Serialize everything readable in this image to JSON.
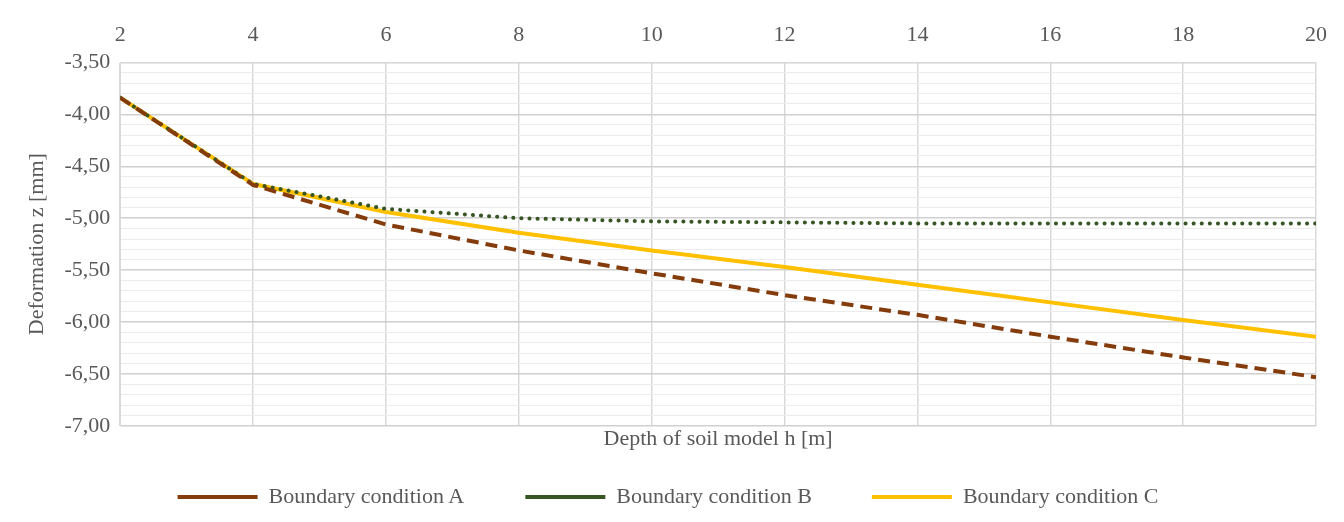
{
  "chart_data": {
    "type": "line",
    "xlabel": "Depth of soil model h [m]",
    "ylabel": "Deformation z [mm]",
    "x": [
      2,
      4,
      6,
      8,
      10,
      12,
      14,
      16,
      18,
      20
    ],
    "series": [
      {
        "name": "Boundary condition A",
        "color": "#843c0c",
        "line_style": "dashed",
        "values": [
          -3.84,
          -4.68,
          -5.06,
          -5.31,
          -5.53,
          -5.74,
          -5.93,
          -6.14,
          -6.34,
          -6.53
        ]
      },
      {
        "name": "Boundary condition B",
        "color": "#375623",
        "line_style": "dotted",
        "values": [
          -3.84,
          -4.67,
          -4.91,
          -5.0,
          -5.03,
          -5.04,
          -5.05,
          -5.05,
          -5.05,
          -5.05
        ]
      },
      {
        "name": "Boundary condition C",
        "color": "#ffc000",
        "line_style": "solid",
        "values": [
          -3.84,
          -4.67,
          -4.94,
          -5.14,
          -5.31,
          -5.47,
          -5.64,
          -5.81,
          -5.98,
          -6.14
        ]
      }
    ],
    "xlim": [
      2,
      20
    ],
    "xticks": [
      2,
      4,
      6,
      8,
      10,
      12,
      14,
      16,
      18,
      20
    ],
    "ylim": [
      -7,
      -3.5
    ],
    "yticks": [
      {
        "value": -3.5,
        "label": "-3,50"
      },
      {
        "value": -3.6,
        "label": null
      },
      {
        "value": -3.7,
        "label": null
      },
      {
        "value": -3.8,
        "label": null
      },
      {
        "value": -3.9,
        "label": null
      },
      {
        "value": -4.0,
        "label": "-4,00"
      },
      {
        "value": -4.1,
        "label": null
      },
      {
        "value": -4.2,
        "label": null
      },
      {
        "value": -4.3,
        "label": null
      },
      {
        "value": -4.4,
        "label": null
      },
      {
        "value": -4.5,
        "label": "-4,50"
      },
      {
        "value": -4.6,
        "label": null
      },
      {
        "value": -4.7,
        "label": null
      },
      {
        "value": -4.8,
        "label": null
      },
      {
        "value": -4.9,
        "label": null
      },
      {
        "value": -5.0,
        "label": "-5,00"
      },
      {
        "value": -5.1,
        "label": null
      },
      {
        "value": -5.2,
        "label": null
      },
      {
        "value": -5.3,
        "label": null
      },
      {
        "value": -5.4,
        "label": null
      },
      {
        "value": -5.5,
        "label": "-5,50"
      },
      {
        "value": -5.6,
        "label": null
      },
      {
        "value": -5.7,
        "label": null
      },
      {
        "value": -5.8,
        "label": null
      },
      {
        "value": -5.9,
        "label": null
      },
      {
        "value": -6.0,
        "label": "-6,00"
      },
      {
        "value": -6.1,
        "label": null
      },
      {
        "value": -6.2,
        "label": null
      },
      {
        "value": -6.3,
        "label": null
      },
      {
        "value": -6.4,
        "label": null
      },
      {
        "value": -6.5,
        "label": "-6,50"
      },
      {
        "value": -6.6,
        "label": null
      },
      {
        "value": -6.7,
        "label": null
      },
      {
        "value": -6.8,
        "label": null
      },
      {
        "value": -6.9,
        "label": null
      },
      {
        "value": -7.0,
        "label": "-7,00"
      }
    ],
    "grid": true,
    "legend": "bottom",
    "marker": "none"
  }
}
